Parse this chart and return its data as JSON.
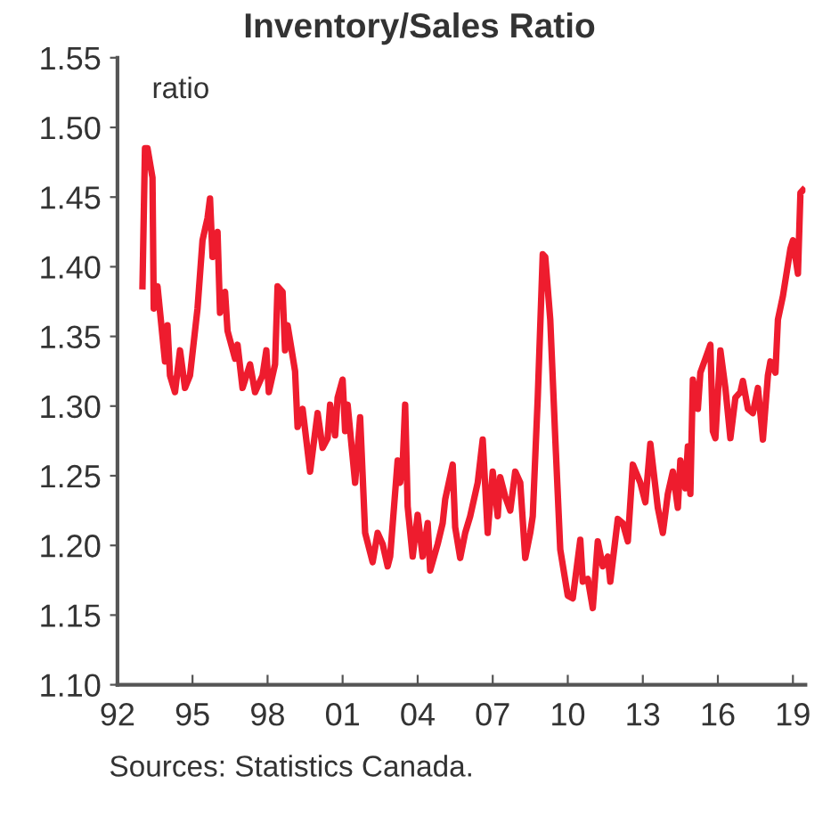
{
  "chart_data": {
    "type": "line",
    "title": "Inventory/Sales Ratio",
    "ylabel": "ratio",
    "annotations": [
      "Sources: Statistics Canada."
    ],
    "xlim": [
      1992,
      2019.5
    ],
    "ylim": [
      1.1,
      1.55
    ],
    "xticks": [
      {
        "value": 1992,
        "label": "92"
      },
      {
        "value": 1995,
        "label": "95"
      },
      {
        "value": 1998,
        "label": "98"
      },
      {
        "value": 2001,
        "label": "01"
      },
      {
        "value": 2004,
        "label": "04"
      },
      {
        "value": 2007,
        "label": "07"
      },
      {
        "value": 2010,
        "label": "10"
      },
      {
        "value": 2013,
        "label": "13"
      },
      {
        "value": 2016,
        "label": "16"
      },
      {
        "value": 2019,
        "label": "19"
      }
    ],
    "yticks": [
      {
        "value": 1.1,
        "label": "1.10"
      },
      {
        "value": 1.15,
        "label": "1.15"
      },
      {
        "value": 1.2,
        "label": "1.20"
      },
      {
        "value": 1.25,
        "label": "1.25"
      },
      {
        "value": 1.3,
        "label": "1.30"
      },
      {
        "value": 1.35,
        "label": "1.35"
      },
      {
        "value": 1.4,
        "label": "1.40"
      },
      {
        "value": 1.45,
        "label": "1.45"
      },
      {
        "value": 1.5,
        "label": "1.50"
      },
      {
        "value": 1.55,
        "label": "1.55"
      }
    ],
    "grid": false,
    "marker": "none",
    "line_style": "solid",
    "series": [
      {
        "color": "#ee1c2e",
        "x": [
          1993.0,
          1993.1,
          1993.2,
          1993.4,
          1993.45,
          1993.6,
          1993.8,
          1993.9,
          1994.0,
          1994.1,
          1994.3,
          1994.5,
          1994.7,
          1994.9,
          1995.2,
          1995.4,
          1995.6,
          1995.7,
          1995.8,
          1996.0,
          1996.1,
          1996.3,
          1996.4,
          1996.7,
          1996.8,
          1997.0,
          1997.3,
          1997.5,
          1997.8,
          1997.95,
          1998.05,
          1998.3,
          1998.4,
          1998.6,
          1998.7,
          1998.8,
          1999.1,
          1999.2,
          1999.4,
          1999.7,
          2000.0,
          2000.2,
          2000.4,
          2000.5,
          2000.7,
          2000.8,
          2001.0,
          2001.1,
          2001.2,
          2001.5,
          2001.7,
          2001.9,
          2002.2,
          2002.4,
          2002.6,
          2002.8,
          2002.9,
          2003.2,
          2003.3,
          2003.4,
          2003.5,
          2003.6,
          2003.8,
          2004.0,
          2004.2,
          2004.4,
          2004.5,
          2004.8,
          2005.0,
          2005.1,
          2005.4,
          2005.5,
          2005.7,
          2005.9,
          2006.1,
          2006.4,
          2006.6,
          2006.8,
          2007.0,
          2007.2,
          2007.3,
          2007.5,
          2007.7,
          2007.9,
          2008.1,
          2008.3,
          2008.5,
          2008.6,
          2008.8,
          2009.0,
          2009.1,
          2009.3,
          2009.5,
          2009.7,
          2010.0,
          2010.2,
          2010.5,
          2010.6,
          2010.8,
          2011.0,
          2011.2,
          2011.4,
          2011.6,
          2011.7,
          2012.0,
          2012.2,
          2012.4,
          2012.6,
          2012.9,
          2013.1,
          2013.3,
          2013.6,
          2013.8,
          2014.0,
          2014.2,
          2014.4,
          2014.5,
          2014.7,
          2014.8,
          2014.9,
          2015.0,
          2015.2,
          2015.3,
          2015.5,
          2015.7,
          2015.8,
          2015.9,
          2016.1,
          2016.3,
          2016.5,
          2016.7,
          2016.9,
          2017.0,
          2017.2,
          2017.4,
          2017.6,
          2017.8,
          2018.0,
          2018.1,
          2018.3,
          2018.4,
          2018.6,
          2018.9,
          2019.0,
          2019.2,
          2019.3,
          2019.4
        ],
        "values": [
          1.386,
          1.485,
          1.485,
          1.464,
          1.37,
          1.386,
          1.35,
          1.332,
          1.358,
          1.322,
          1.31,
          1.34,
          1.313,
          1.322,
          1.37,
          1.419,
          1.435,
          1.449,
          1.407,
          1.425,
          1.367,
          1.382,
          1.354,
          1.334,
          1.344,
          1.313,
          1.33,
          1.31,
          1.322,
          1.34,
          1.31,
          1.33,
          1.386,
          1.382,
          1.34,
          1.358,
          1.325,
          1.285,
          1.298,
          1.253,
          1.295,
          1.27,
          1.277,
          1.301,
          1.279,
          1.306,
          1.319,
          1.282,
          1.301,
          1.245,
          1.292,
          1.209,
          1.188,
          1.209,
          1.201,
          1.185,
          1.192,
          1.261,
          1.245,
          1.258,
          1.301,
          1.228,
          1.192,
          1.222,
          1.192,
          1.216,
          1.182,
          1.201,
          1.216,
          1.233,
          1.258,
          1.213,
          1.191,
          1.209,
          1.221,
          1.245,
          1.276,
          1.209,
          1.253,
          1.221,
          1.249,
          1.235,
          1.225,
          1.253,
          1.245,
          1.191,
          1.209,
          1.221,
          1.306,
          1.409,
          1.407,
          1.362,
          1.277,
          1.197,
          1.164,
          1.162,
          1.204,
          1.174,
          1.176,
          1.155,
          1.203,
          1.185,
          1.192,
          1.174,
          1.219,
          1.216,
          1.203,
          1.258,
          1.245,
          1.231,
          1.273,
          1.227,
          1.209,
          1.237,
          1.253,
          1.227,
          1.261,
          1.241,
          1.271,
          1.237,
          1.319,
          1.298,
          1.324,
          1.334,
          1.344,
          1.282,
          1.277,
          1.34,
          1.313,
          1.277,
          1.306,
          1.31,
          1.318,
          1.298,
          1.295,
          1.313,
          1.276,
          1.322,
          1.332,
          1.324,
          1.362,
          1.379,
          1.413,
          1.419,
          1.395,
          1.453,
          1.455
        ]
      }
    ]
  }
}
